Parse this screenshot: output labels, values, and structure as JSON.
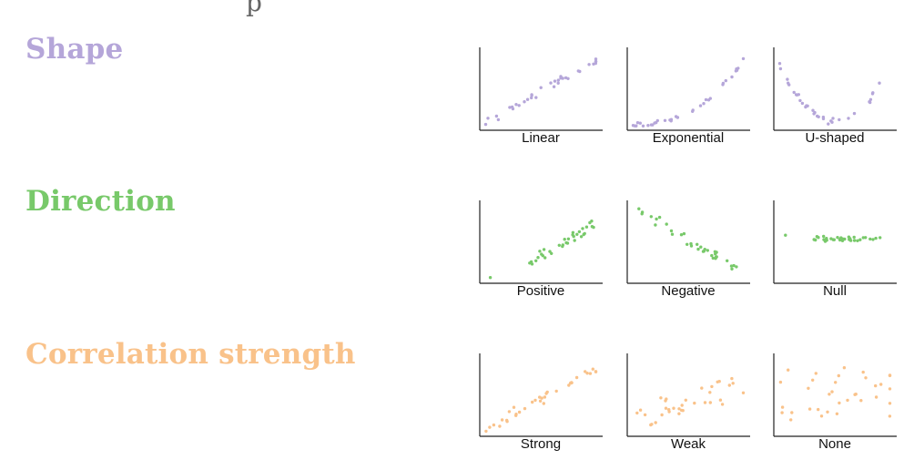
{
  "header_fragment": "p",
  "rows": [
    {
      "title": "Shape",
      "color": "#b5a6d9",
      "panels": [
        {
          "label": "Linear",
          "pattern": "linear"
        },
        {
          "label": "Exponential",
          "pattern": "exponential"
        },
        {
          "label": "U-shaped",
          "pattern": "u"
        }
      ]
    },
    {
      "title": "Direction",
      "color": "#78c96a",
      "panels": [
        {
          "label": "Positive",
          "pattern": "positive"
        },
        {
          "label": "Negative",
          "pattern": "negative"
        },
        {
          "label": "Null",
          "pattern": "null"
        }
      ]
    },
    {
      "title": "Correlation strength",
      "color": "#f9c28a",
      "panels": [
        {
          "label": "Strong",
          "pattern": "strong"
        },
        {
          "label": "Weak",
          "pattern": "weak"
        },
        {
          "label": "None",
          "pattern": "none"
        }
      ]
    }
  ]
}
